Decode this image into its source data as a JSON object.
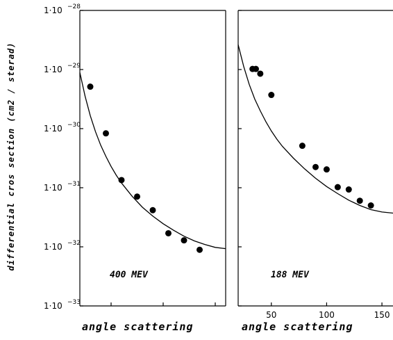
{
  "chart_data": [
    {
      "type": "scatter",
      "panel_label": "400    MEV",
      "xlabel": "angle   scattering",
      "ylabel": "differential   cros   section   (cm2 / sterad)",
      "log_y": true,
      "xlim": [
        20,
        160
      ],
      "ylim_exp": [
        -33,
        -28
      ],
      "x_ticks": [
        50,
        100,
        150
      ],
      "x_tick_labels": [
        "",
        "",
        ""
      ],
      "y_ticks_exp": [
        -28,
        -29,
        -30,
        -31,
        -32,
        -33
      ],
      "y_tick_prefix": "1·10",
      "y_tick_exp_labels": [
        "−28",
        "−29",
        "−30",
        "−31",
        "−32",
        "−33"
      ],
      "series": [
        {
          "kind": "points",
          "x": [
            30,
            45,
            60,
            75,
            90,
            105,
            120,
            135
          ],
          "y_exp": [
            -29.29,
            -30.08,
            -30.87,
            -31.15,
            -31.38,
            -31.77,
            -31.89,
            -32.05
          ]
        },
        {
          "kind": "line",
          "x": [
            20,
            25,
            30,
            35,
            40,
            45,
            50,
            55,
            60,
            70,
            80,
            90,
            100,
            110,
            120,
            130,
            140,
            150,
            160
          ],
          "y_exp": [
            -29.05,
            -29.45,
            -29.78,
            -30.05,
            -30.28,
            -30.47,
            -30.64,
            -30.79,
            -30.92,
            -31.14,
            -31.33,
            -31.48,
            -31.61,
            -31.72,
            -31.82,
            -31.9,
            -31.96,
            -32.01,
            -32.03
          ]
        }
      ]
    },
    {
      "type": "scatter",
      "panel_label": "188    MEV",
      "xlabel": "angle   scattering",
      "log_y": true,
      "xlim": [
        20,
        160
      ],
      "ylim_exp": [
        -33,
        -28
      ],
      "x_ticks": [
        50,
        100,
        150
      ],
      "x_tick_labels": [
        "50",
        "100",
        "150"
      ],
      "series": [
        {
          "kind": "points",
          "x": [
            33,
            36,
            40,
            50,
            78,
            90,
            100,
            110,
            120,
            130,
            140
          ],
          "y_exp": [
            -28.99,
            -28.99,
            -29.07,
            -29.43,
            -30.29,
            -30.65,
            -30.69,
            -30.99,
            -31.03,
            -31.22,
            -31.3
          ]
        },
        {
          "kind": "line",
          "x": [
            20,
            25,
            30,
            35,
            40,
            45,
            50,
            55,
            60,
            70,
            80,
            90,
            100,
            110,
            120,
            130,
            140,
            150,
            160
          ],
          "y_exp": [
            -28.58,
            -28.95,
            -29.25,
            -29.5,
            -29.7,
            -29.88,
            -30.04,
            -30.18,
            -30.3,
            -30.5,
            -30.68,
            -30.84,
            -30.98,
            -31.1,
            -31.21,
            -31.3,
            -31.37,
            -31.41,
            -31.43
          ]
        }
      ]
    }
  ]
}
